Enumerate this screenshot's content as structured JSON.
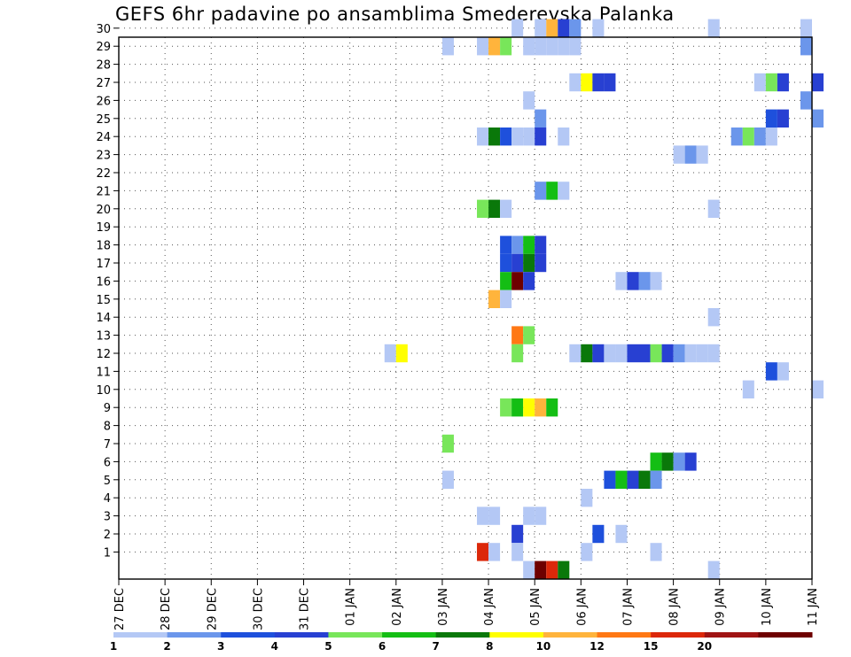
{
  "chart_data": {
    "type": "heatmap",
    "title": "GEFS 6hr padavine po ansamblima Smederevska Palanka",
    "xlabel": "",
    "ylabel": "",
    "x_ticks": [
      "27 DEC",
      "28 DEC",
      "29 DEC",
      "30 DEC",
      "31 DEC",
      "01 JAN",
      "02 JAN",
      "03 JAN",
      "04 JAN",
      "05 JAN",
      "06 JAN",
      "07 JAN",
      "08 JAN",
      "09 JAN",
      "10 JAN",
      "11 JAN"
    ],
    "y_ticks": [
      1,
      2,
      3,
      4,
      5,
      6,
      7,
      8,
      9,
      10,
      11,
      12,
      13,
      14,
      15,
      16,
      17,
      18,
      19,
      20,
      21,
      22,
      23,
      24,
      25,
      26,
      27,
      28,
      29,
      30
    ],
    "xlim": [
      "27 DEC 00Z",
      "11 JAN 00Z"
    ],
    "ylim": [
      0,
      30
    ],
    "grid": true,
    "colorbar": {
      "ticks": [
        "1",
        "2",
        "3",
        "4",
        "5",
        "6",
        "7",
        "8",
        "10",
        "12",
        "15",
        "20"
      ],
      "colors": [
        "#b4c8f5",
        "#6b96eb",
        "#1e50dc",
        "#2840d2",
        "#78e65a",
        "#14be14",
        "#0a780a",
        "#ffff00",
        "#ffb43c",
        "#ff7814",
        "#dc280a",
        "#a01414",
        "#6e0000"
      ]
    },
    "cells": [
      {
        "member": 30,
        "x": "04 JAN 12Z",
        "bin": 0
      },
      {
        "member": 30,
        "x": "05 JAN 00Z",
        "bin": 0
      },
      {
        "member": 30,
        "x": "05 JAN 06Z",
        "bin": 8
      },
      {
        "member": 30,
        "x": "05 JAN 12Z",
        "bin": 3
      },
      {
        "member": 30,
        "x": "05 JAN 18Z",
        "bin": 1
      },
      {
        "member": 30,
        "x": "06 JAN 06Z",
        "bin": 0
      },
      {
        "member": 30,
        "x": "08 JAN 18Z",
        "bin": 0
      },
      {
        "member": 30,
        "x": "10 JAN 18Z",
        "bin": 0
      },
      {
        "member": 29,
        "x": "03 JAN 00Z",
        "bin": 0
      },
      {
        "member": 29,
        "x": "03 JAN 18Z",
        "bin": 0
      },
      {
        "member": 29,
        "x": "04 JAN 00Z",
        "bin": 8
      },
      {
        "member": 29,
        "x": "04 JAN 06Z",
        "bin": 4
      },
      {
        "member": 29,
        "x": "04 JAN 18Z",
        "bin": 0
      },
      {
        "member": 29,
        "x": "05 JAN 00Z",
        "bin": 0
      },
      {
        "member": 29,
        "x": "05 JAN 06Z",
        "bin": 0
      },
      {
        "member": 29,
        "x": "05 JAN 12Z",
        "bin": 0
      },
      {
        "member": 29,
        "x": "05 JAN 18Z",
        "bin": 0
      },
      {
        "member": 29,
        "x": "10 JAN 18Z",
        "bin": 1
      },
      {
        "member": 27,
        "x": "05 JAN 18Z",
        "bin": 0
      },
      {
        "member": 27,
        "x": "06 JAN 00Z",
        "bin": 7
      },
      {
        "member": 27,
        "x": "06 JAN 06Z",
        "bin": 3
      },
      {
        "member": 27,
        "x": "06 JAN 12Z",
        "bin": 3
      },
      {
        "member": 27,
        "x": "09 JAN 18Z",
        "bin": 0
      },
      {
        "member": 27,
        "x": "10 JAN 00Z",
        "bin": 4
      },
      {
        "member": 27,
        "x": "10 JAN 06Z",
        "bin": 3
      },
      {
        "member": 27,
        "x": "11 JAN 00Z",
        "bin": 3
      },
      {
        "member": 26,
        "x": "04 JAN 18Z",
        "bin": 0
      },
      {
        "member": 26,
        "x": "10 JAN 18Z",
        "bin": 1
      },
      {
        "member": 25,
        "x": "05 JAN 00Z",
        "bin": 1
      },
      {
        "member": 25,
        "x": "10 JAN 00Z",
        "bin": 2
      },
      {
        "member": 25,
        "x": "10 JAN 06Z",
        "bin": 3
      },
      {
        "member": 25,
        "x": "11 JAN 00Z",
        "bin": 1
      },
      {
        "member": 24,
        "x": "03 JAN 18Z",
        "bin": 0
      },
      {
        "member": 24,
        "x": "04 JAN 00Z",
        "bin": 6
      },
      {
        "member": 24,
        "x": "04 JAN 06Z",
        "bin": 2
      },
      {
        "member": 24,
        "x": "04 JAN 12Z",
        "bin": 0
      },
      {
        "member": 24,
        "x": "04 JAN 18Z",
        "bin": 0
      },
      {
        "member": 24,
        "x": "05 JAN 00Z",
        "bin": 3
      },
      {
        "member": 24,
        "x": "05 JAN 12Z",
        "bin": 0
      },
      {
        "member": 24,
        "x": "09 JAN 06Z",
        "bin": 1
      },
      {
        "member": 24,
        "x": "09 JAN 12Z",
        "bin": 4
      },
      {
        "member": 24,
        "x": "09 JAN 18Z",
        "bin": 1
      },
      {
        "member": 24,
        "x": "10 JAN 00Z",
        "bin": 0
      },
      {
        "member": 23,
        "x": "08 JAN 00Z",
        "bin": 0
      },
      {
        "member": 23,
        "x": "08 JAN 06Z",
        "bin": 1
      },
      {
        "member": 23,
        "x": "08 JAN 12Z",
        "bin": 0
      },
      {
        "member": 21,
        "x": "05 JAN 00Z",
        "bin": 1
      },
      {
        "member": 21,
        "x": "05 JAN 06Z",
        "bin": 5
      },
      {
        "member": 21,
        "x": "05 JAN 12Z",
        "bin": 0
      },
      {
        "member": 20,
        "x": "03 JAN 18Z",
        "bin": 4
      },
      {
        "member": 20,
        "x": "04 JAN 00Z",
        "bin": 6
      },
      {
        "member": 20,
        "x": "04 JAN 06Z",
        "bin": 0
      },
      {
        "member": 20,
        "x": "08 JAN 18Z",
        "bin": 0
      },
      {
        "member": 18,
        "x": "04 JAN 06Z",
        "bin": 2
      },
      {
        "member": 18,
        "x": "04 JAN 12Z",
        "bin": 1
      },
      {
        "member": 18,
        "x": "04 JAN 18Z",
        "bin": 5
      },
      {
        "member": 18,
        "x": "05 JAN 00Z",
        "bin": 3
      },
      {
        "member": 17,
        "x": "04 JAN 06Z",
        "bin": 2
      },
      {
        "member": 17,
        "x": "04 JAN 12Z",
        "bin": 3
      },
      {
        "member": 17,
        "x": "04 JAN 18Z",
        "bin": 6
      },
      {
        "member": 17,
        "x": "05 JAN 00Z",
        "bin": 3
      },
      {
        "member": 16,
        "x": "04 JAN 06Z",
        "bin": 5
      },
      {
        "member": 16,
        "x": "04 JAN 12Z",
        "bin": 12
      },
      {
        "member": 16,
        "x": "04 JAN 18Z",
        "bin": 3
      },
      {
        "member": 16,
        "x": "06 JAN 18Z",
        "bin": 0
      },
      {
        "member": 16,
        "x": "07 JAN 00Z",
        "bin": 3
      },
      {
        "member": 16,
        "x": "07 JAN 06Z",
        "bin": 1
      },
      {
        "member": 16,
        "x": "07 JAN 12Z",
        "bin": 0
      },
      {
        "member": 15,
        "x": "04 JAN 00Z",
        "bin": 8
      },
      {
        "member": 15,
        "x": "04 JAN 06Z",
        "bin": 0
      },
      {
        "member": 14,
        "x": "08 JAN 18Z",
        "bin": 0
      },
      {
        "member": 13,
        "x": "04 JAN 12Z",
        "bin": 9
      },
      {
        "member": 13,
        "x": "04 JAN 18Z",
        "bin": 4
      },
      {
        "member": 12,
        "x": "01 JAN 18Z",
        "bin": 0
      },
      {
        "member": 12,
        "x": "02 JAN 00Z",
        "bin": 7
      },
      {
        "member": 12,
        "x": "04 JAN 12Z",
        "bin": 4
      },
      {
        "member": 12,
        "x": "05 JAN 18Z",
        "bin": 0
      },
      {
        "member": 12,
        "x": "06 JAN 00Z",
        "bin": 6
      },
      {
        "member": 12,
        "x": "06 JAN 06Z",
        "bin": 3
      },
      {
        "member": 12,
        "x": "06 JAN 12Z",
        "bin": 0
      },
      {
        "member": 12,
        "x": "06 JAN 18Z",
        "bin": 0
      },
      {
        "member": 12,
        "x": "07 JAN 00Z",
        "bin": 3
      },
      {
        "member": 12,
        "x": "07 JAN 06Z",
        "bin": 3
      },
      {
        "member": 12,
        "x": "07 JAN 12Z",
        "bin": 4
      },
      {
        "member": 12,
        "x": "07 JAN 18Z",
        "bin": 3
      },
      {
        "member": 12,
        "x": "08 JAN 00Z",
        "bin": 1
      },
      {
        "member": 12,
        "x": "08 JAN 06Z",
        "bin": 0
      },
      {
        "member": 12,
        "x": "08 JAN 12Z",
        "bin": 0
      },
      {
        "member": 12,
        "x": "08 JAN 18Z",
        "bin": 0
      },
      {
        "member": 11,
        "x": "10 JAN 00Z",
        "bin": 2
      },
      {
        "member": 11,
        "x": "10 JAN 06Z",
        "bin": 0
      },
      {
        "member": 10,
        "x": "09 JAN 12Z",
        "bin": 0
      },
      {
        "member": 10,
        "x": "11 JAN 00Z",
        "bin": 0
      },
      {
        "member": 9,
        "x": "04 JAN 06Z",
        "bin": 4
      },
      {
        "member": 9,
        "x": "04 JAN 12Z",
        "bin": 5
      },
      {
        "member": 9,
        "x": "04 JAN 18Z",
        "bin": 7
      },
      {
        "member": 9,
        "x": "05 JAN 00Z",
        "bin": 8
      },
      {
        "member": 9,
        "x": "05 JAN 06Z",
        "bin": 5
      },
      {
        "member": 7,
        "x": "03 JAN 00Z",
        "bin": 4
      },
      {
        "member": 6,
        "x": "07 JAN 12Z",
        "bin": 5
      },
      {
        "member": 6,
        "x": "07 JAN 18Z",
        "bin": 6
      },
      {
        "member": 6,
        "x": "08 JAN 00Z",
        "bin": 1
      },
      {
        "member": 6,
        "x": "08 JAN 06Z",
        "bin": 3
      },
      {
        "member": 5,
        "x": "03 JAN 00Z",
        "bin": 0
      },
      {
        "member": 5,
        "x": "06 JAN 12Z",
        "bin": 2
      },
      {
        "member": 5,
        "x": "06 JAN 18Z",
        "bin": 5
      },
      {
        "member": 5,
        "x": "07 JAN 00Z",
        "bin": 3
      },
      {
        "member": 5,
        "x": "07 JAN 06Z",
        "bin": 6
      },
      {
        "member": 5,
        "x": "07 JAN 12Z",
        "bin": 1
      },
      {
        "member": 4,
        "x": "06 JAN 00Z",
        "bin": 0
      },
      {
        "member": 3,
        "x": "03 JAN 18Z",
        "bin": 0
      },
      {
        "member": 3,
        "x": "04 JAN 00Z",
        "bin": 0
      },
      {
        "member": 3,
        "x": "04 JAN 18Z",
        "bin": 0
      },
      {
        "member": 3,
        "x": "05 JAN 00Z",
        "bin": 0
      },
      {
        "member": 2,
        "x": "04 JAN 12Z",
        "bin": 3
      },
      {
        "member": 2,
        "x": "06 JAN 06Z",
        "bin": 2
      },
      {
        "member": 2,
        "x": "06 JAN 18Z",
        "bin": 0
      },
      {
        "member": 1,
        "x": "03 JAN 18Z",
        "bin": 10
      },
      {
        "member": 1,
        "x": "04 JAN 00Z",
        "bin": 0
      },
      {
        "member": 1,
        "x": "04 JAN 12Z",
        "bin": 0
      },
      {
        "member": 1,
        "x": "06 JAN 00Z",
        "bin": 0
      },
      {
        "member": 1,
        "x": "07 JAN 12Z",
        "bin": 0
      },
      {
        "member": 0,
        "x": "04 JAN 18Z",
        "bin": 0
      },
      {
        "member": 0,
        "x": "05 JAN 00Z",
        "bin": 12
      },
      {
        "member": 0,
        "x": "05 JAN 06Z",
        "bin": 10
      },
      {
        "member": 0,
        "x": "05 JAN 12Z",
        "bin": 6
      },
      {
        "member": 0,
        "x": "08 JAN 18Z",
        "bin": 0
      }
    ]
  }
}
